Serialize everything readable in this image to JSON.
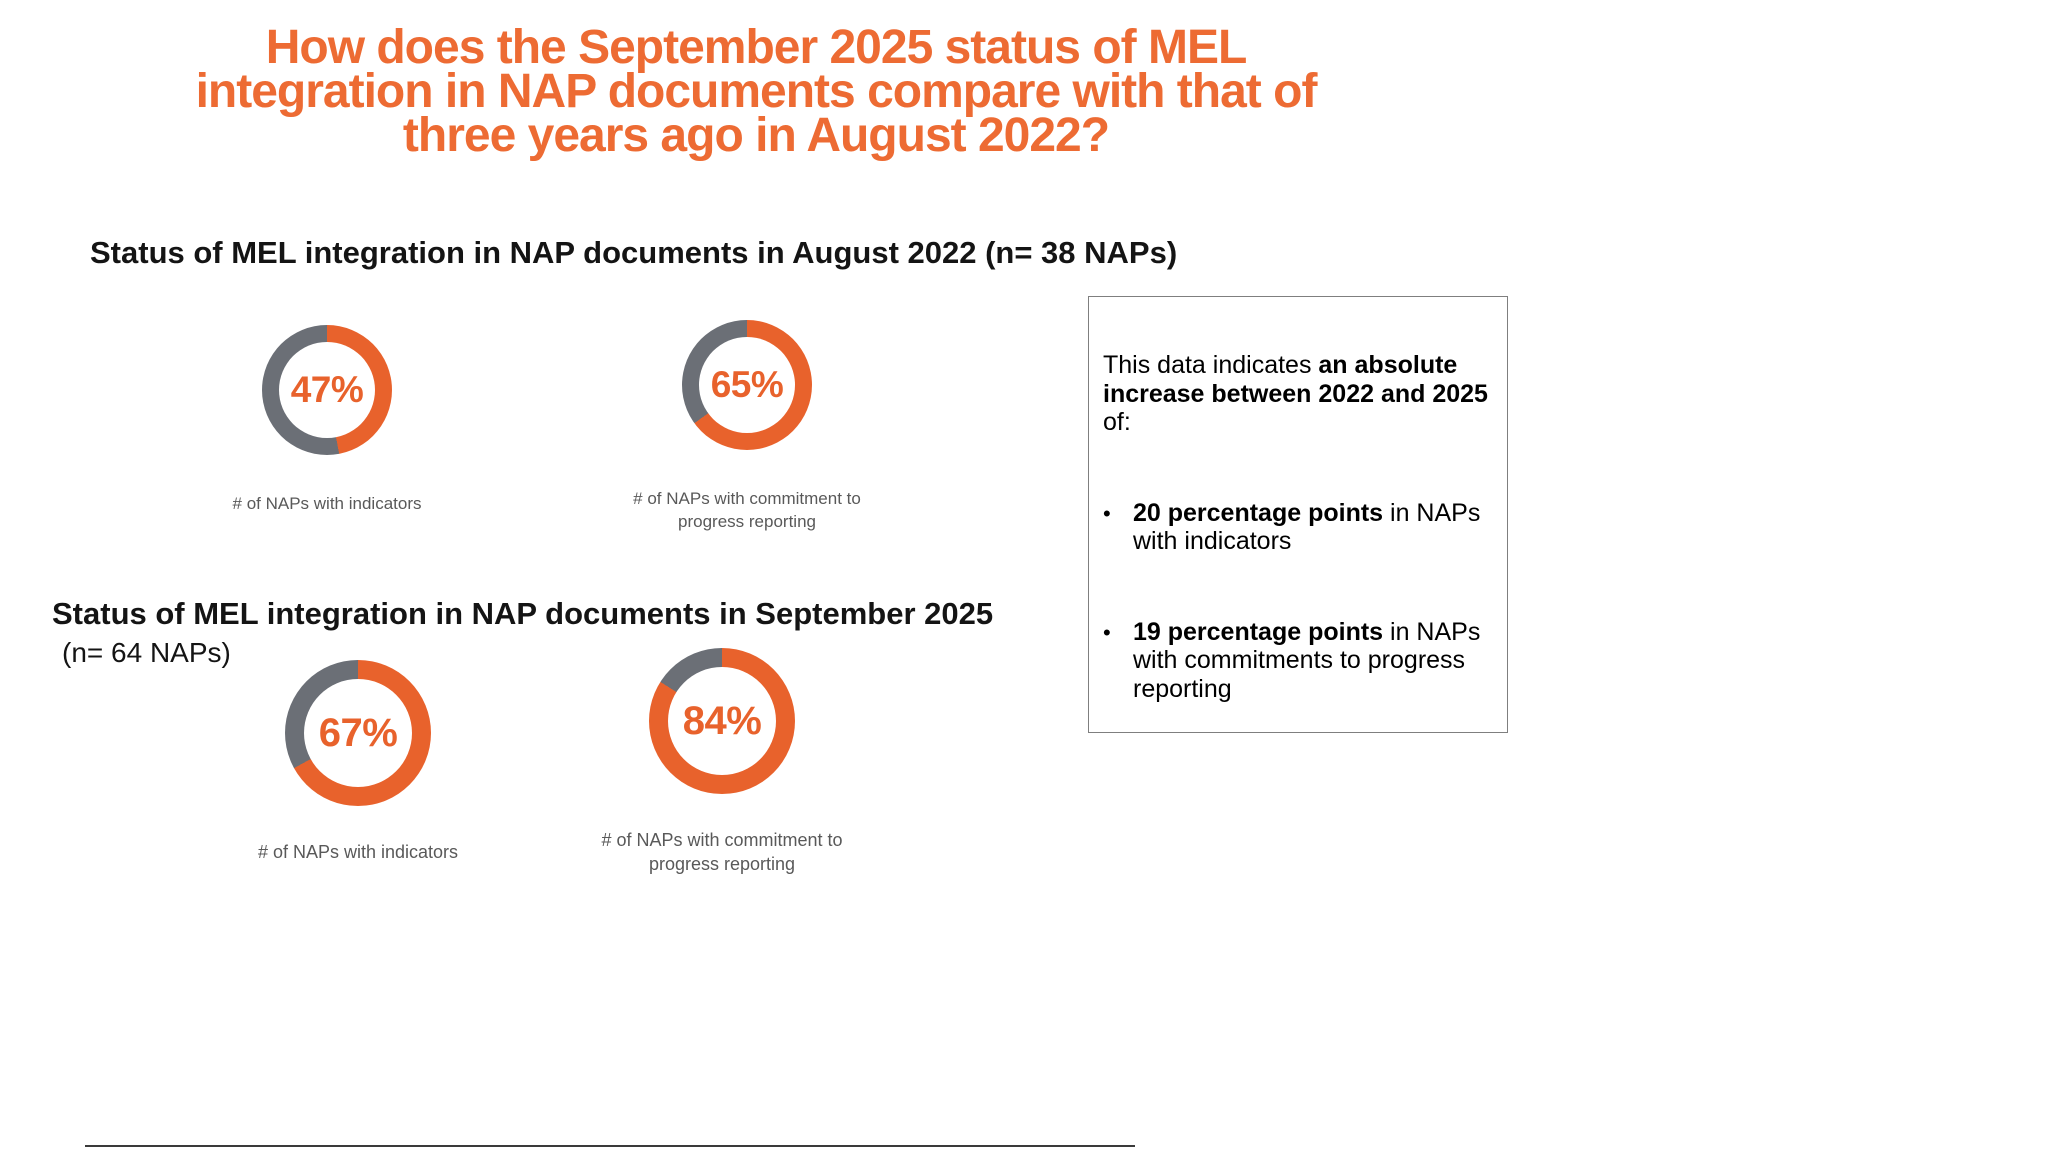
{
  "title": {
    "line1": "How does the September 2025 status of MEL",
    "line2": "integration in NAP documents compare with that of",
    "line3": "three years ago in August 2022?"
  },
  "sections": [
    {
      "heading": "Status of MEL integration in NAP documents in August 2022 (n= 38 NAPs)",
      "subheading": ""
    },
    {
      "heading": "Status of MEL integration in NAP documents in September 2025",
      "subheading": "(n= 64 NAPs)"
    }
  ],
  "chart_data": [
    {
      "type": "pie",
      "title": "Status of MEL integration in NAP documents in August 2022 (n= 38 NAPs)",
      "n": 38,
      "unit": "%",
      "donuts": [
        {
          "label": "# of NAPs with indicators",
          "value": 47,
          "display": "47%"
        },
        {
          "label": "# of NAPs with commitment to progress reporting",
          "value": 65,
          "display": "65%"
        }
      ]
    },
    {
      "type": "pie",
      "title": "Status of MEL integration in NAP documents in September 2025 (n= 64 NAPs)",
      "n": 64,
      "unit": "%",
      "donuts": [
        {
          "label": "# of NAPs with indicators",
          "value": 67,
          "display": "67%"
        },
        {
          "label": "# of NAPs with commitment to progress reporting",
          "value": 84,
          "display": "84%"
        }
      ]
    }
  ],
  "sidebox": {
    "intro": {
      "pre": "This data indicates ",
      "bold": "an absolute increase between 2022 and 2025",
      "post": " of:"
    },
    "bullets": [
      {
        "bold": "20 percentage points",
        "rest": " in NAPs with indicators"
      },
      {
        "bold": "19 percentage points",
        "rest": " in NAPs with commitments to progress reporting"
      }
    ]
  },
  "colors": {
    "title_orange": "#ED6B33",
    "donut_fill": "#E8622C",
    "donut_remainder": "#6B6F76",
    "caption_gray": "#595959"
  }
}
